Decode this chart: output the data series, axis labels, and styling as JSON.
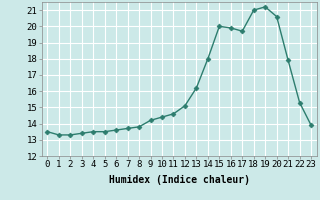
{
  "x": [
    0,
    1,
    2,
    3,
    4,
    5,
    6,
    7,
    8,
    9,
    10,
    11,
    12,
    13,
    14,
    15,
    16,
    17,
    18,
    19,
    20,
    21,
    22,
    23
  ],
  "y": [
    13.5,
    13.3,
    13.3,
    13.4,
    13.5,
    13.5,
    13.6,
    13.7,
    13.8,
    14.2,
    14.4,
    14.6,
    15.1,
    16.2,
    18.0,
    20.0,
    19.9,
    19.7,
    21.0,
    21.2,
    20.6,
    17.9,
    15.3,
    13.9
  ],
  "line_color": "#2d7d6e",
  "marker": "D",
  "marker_size": 2.5,
  "background_color": "#cce9e8",
  "grid_color": "#ffffff",
  "xlabel": "Humidex (Indice chaleur)",
  "xlim": [
    -0.5,
    23.5
  ],
  "ylim": [
    12,
    21.5
  ],
  "yticks": [
    12,
    13,
    14,
    15,
    16,
    17,
    18,
    19,
    20,
    21
  ],
  "xtick_labels": [
    "0",
    "1",
    "2",
    "3",
    "4",
    "5",
    "6",
    "7",
    "8",
    "9",
    "10",
    "11",
    "12",
    "13",
    "14",
    "15",
    "16",
    "17",
    "18",
    "19",
    "20",
    "21",
    "22",
    "23"
  ],
  "label_fontsize": 7,
  "tick_fontsize": 6.5
}
